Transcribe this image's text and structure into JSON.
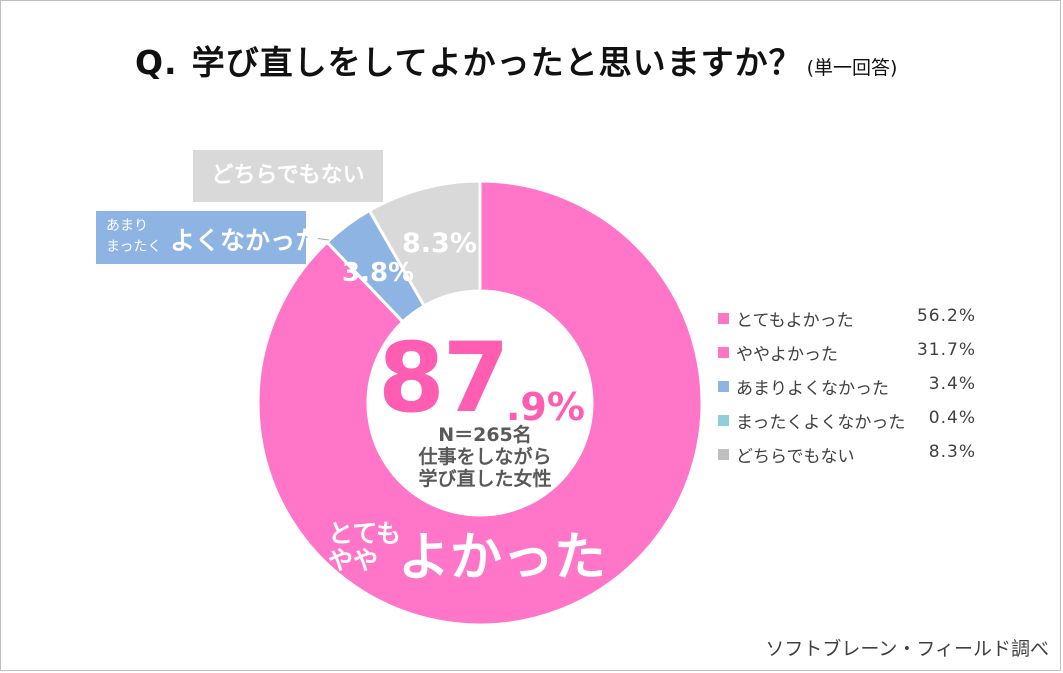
{
  "title": {
    "q": "Q.",
    "text": "学び直しをしてよかったと思いますか？",
    "sub": "(単一回答)"
  },
  "chart_data": {
    "type": "pie",
    "donut": true,
    "categories": [
      "とてもよかった",
      "ややよかった",
      "あまりよくなかった",
      "まったくよくなかった",
      "どちらでもない"
    ],
    "values": [
      56.2,
      31.7,
      3.4,
      0.4,
      8.3
    ],
    "value_labels": [
      "56.2%",
      "31.7%",
      "3.4%",
      "0.4%",
      "8.3%"
    ],
    "colors": [
      "#ff75c8",
      "#ff75c8",
      "#8eb4e3",
      "#8eb4e3",
      "#d9d9d9"
    ],
    "ring_segments": [
      {
        "label": "よかった",
        "value": 87.9,
        "color": "#ff75c8"
      },
      {
        "label": "よくなかった",
        "value": 3.8,
        "color": "#8eb4e3"
      },
      {
        "label": "どちらでもない",
        "value": 8.3,
        "color": "#d9d9d9"
      }
    ],
    "legend_position": "right"
  },
  "legend": [
    {
      "label": "とてもよかった",
      "value": "56.2%",
      "color": "#ff75c8"
    },
    {
      "label": "ややよかった",
      "value": "31.7%",
      "color": "#ff75c8"
    },
    {
      "label": "あまりよくなかった",
      "value": "3.4%",
      "color": "#8eb4e3"
    },
    {
      "label": "まったくよくなかった",
      "value": "0.4%",
      "color": "#92cddc"
    },
    {
      "label": "どちらでもない",
      "value": "8.3%",
      "color": "#bfbfbf"
    }
  ],
  "segment_labels": {
    "bad": "3.8%",
    "neutral": "8.3%"
  },
  "callouts": {
    "neutral": "どちらでもない",
    "bad_small_1": "あまり",
    "bad_small_2": "まったく",
    "bad_big": "よくなかった",
    "good_small_1": "とても",
    "good_small_2": "やや",
    "good_big": "よかった"
  },
  "center": {
    "big": "87",
    "pct": ".9%",
    "n": "N＝265名",
    "line1": "仕事をしながら",
    "line2": "学び直した女性"
  },
  "source": "ソフトブレーン・フィールド調べ"
}
